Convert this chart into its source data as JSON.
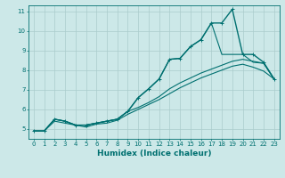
{
  "xlabel": "Humidex (Indice chaleur)",
  "ylabel": "",
  "bg_color": "#cce8e8",
  "grid_color": "#aacccc",
  "line_color": "#007070",
  "xlim": [
    -0.5,
    23.5
  ],
  "ylim": [
    4.5,
    11.3
  ],
  "xticks": [
    0,
    1,
    2,
    3,
    4,
    5,
    6,
    7,
    8,
    9,
    10,
    11,
    12,
    13,
    14,
    15,
    16,
    17,
    18,
    19,
    20,
    21,
    22,
    23
  ],
  "yticks": [
    5,
    6,
    7,
    8,
    9,
    10,
    11
  ],
  "series": [
    {
      "x": [
        0,
        1,
        2,
        3,
        4,
        5,
        6,
        7,
        8,
        9,
        10,
        11,
        12,
        13,
        14,
        15,
        16,
        17,
        18,
        19,
        20,
        21,
        22,
        23
      ],
      "y": [
        4.9,
        4.9,
        5.5,
        5.4,
        5.2,
        5.2,
        5.3,
        5.4,
        5.5,
        5.9,
        6.6,
        7.05,
        7.55,
        8.55,
        8.6,
        9.2,
        9.55,
        10.4,
        10.4,
        11.1,
        8.8,
        8.8,
        8.4,
        7.55
      ],
      "marker": "+",
      "lw": 1.0
    },
    {
      "x": [
        0,
        1,
        2,
        3,
        4,
        5,
        6,
        7,
        8,
        9,
        10,
        11,
        12,
        13,
        14,
        15,
        16,
        17,
        18,
        19,
        20,
        21,
        22,
        23
      ],
      "y": [
        4.9,
        4.9,
        5.5,
        5.4,
        5.2,
        5.2,
        5.3,
        5.4,
        5.5,
        5.9,
        6.6,
        7.05,
        7.55,
        8.55,
        8.6,
        9.2,
        9.55,
        10.4,
        8.8,
        8.8,
        8.8,
        8.4,
        8.35,
        7.55
      ],
      "marker": null,
      "lw": 0.8
    },
    {
      "x": [
        0,
        1,
        2,
        3,
        4,
        5,
        6,
        7,
        8,
        9,
        10,
        11,
        12,
        13,
        14,
        15,
        16,
        17,
        18,
        19,
        20,
        21,
        22,
        23
      ],
      "y": [
        4.9,
        4.9,
        5.5,
        5.4,
        5.2,
        5.2,
        5.3,
        5.4,
        5.5,
        5.9,
        6.1,
        6.35,
        6.65,
        7.05,
        7.35,
        7.6,
        7.85,
        8.05,
        8.25,
        8.45,
        8.55,
        8.45,
        8.35,
        7.55
      ],
      "marker": null,
      "lw": 0.8
    },
    {
      "x": [
        0,
        1,
        2,
        3,
        4,
        5,
        6,
        7,
        8,
        9,
        10,
        11,
        12,
        13,
        14,
        15,
        16,
        17,
        18,
        19,
        20,
        21,
        22,
        23
      ],
      "y": [
        4.9,
        4.9,
        5.4,
        5.3,
        5.2,
        5.1,
        5.25,
        5.3,
        5.45,
        5.75,
        6.0,
        6.25,
        6.5,
        6.8,
        7.1,
        7.35,
        7.6,
        7.8,
        8.0,
        8.2,
        8.3,
        8.15,
        7.95,
        7.55
      ],
      "marker": null,
      "lw": 0.8
    }
  ]
}
